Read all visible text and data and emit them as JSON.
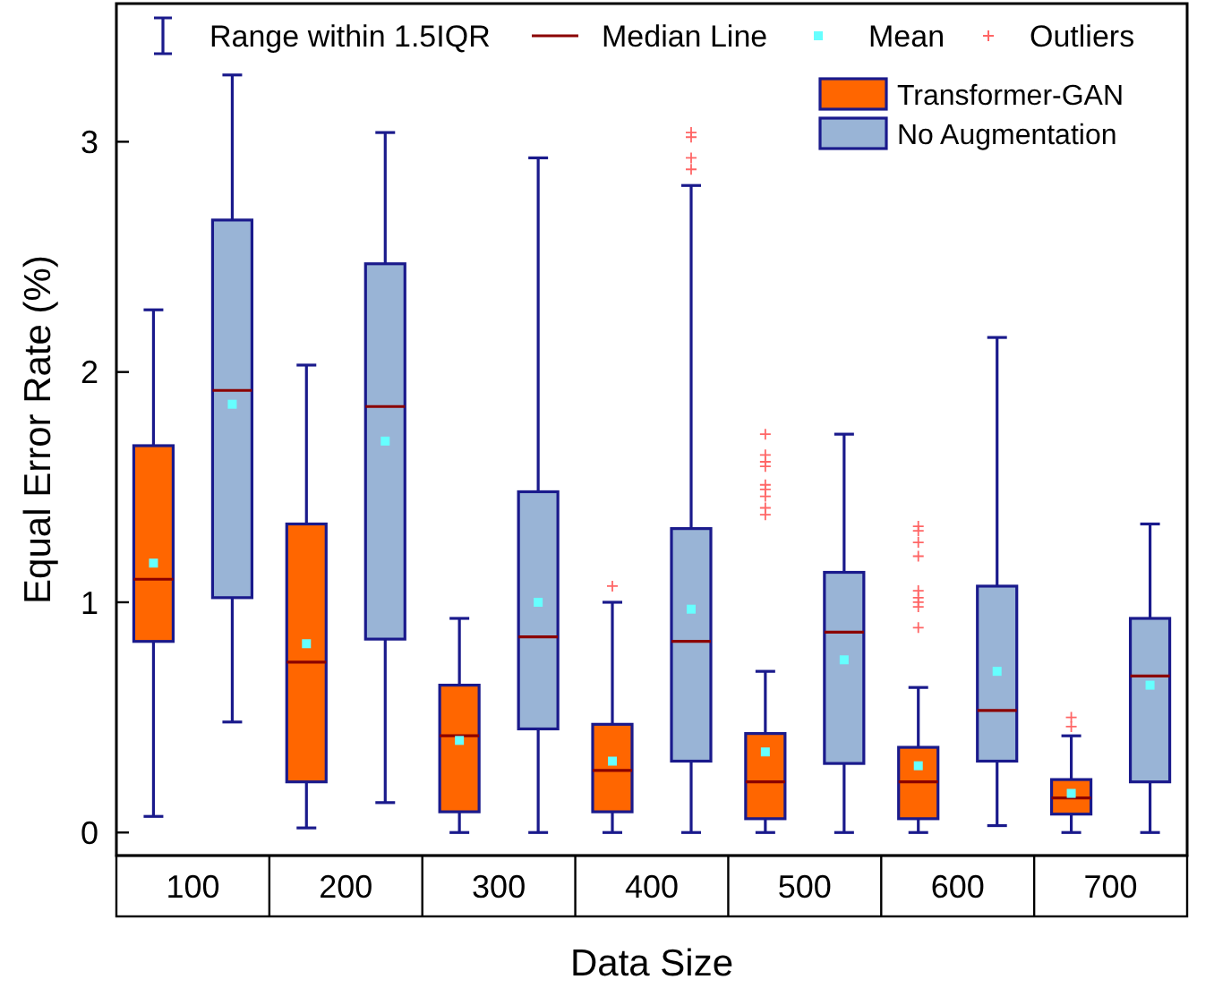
{
  "chart_data": {
    "type": "box",
    "xlabel": "Data Size",
    "ylabel": "Equal Error Rate (%)",
    "categories": [
      "100",
      "200",
      "300",
      "400",
      "500",
      "600",
      "700"
    ],
    "ylim": [
      -0.1,
      3.6
    ],
    "yticks": [
      0,
      1,
      2,
      3
    ],
    "grid": false,
    "legend": "top right",
    "annotations": [
      "Range within 1.5IQR",
      "Median Line",
      "Mean",
      "Outliers"
    ],
    "series": [
      {
        "name": "Transformer-GAN",
        "color": "#ff6600",
        "boxes": [
          {
            "low": 0.07,
            "q1": 0.83,
            "median": 1.1,
            "q3": 1.68,
            "high": 2.27,
            "mean": 1.17
          },
          {
            "low": 0.02,
            "q1": 0.22,
            "median": 0.74,
            "q3": 1.34,
            "high": 2.03,
            "mean": 0.82
          },
          {
            "low": 0,
            "q1": 0.09,
            "median": 0.42,
            "q3": 0.64,
            "high": 0.93,
            "mean": 0.4
          },
          {
            "low": 0,
            "q1": 0.09,
            "median": 0.27,
            "q3": 0.47,
            "high": 1.0,
            "mean": 0.31,
            "outliers": [
              1.07
            ]
          },
          {
            "low": 0,
            "q1": 0.06,
            "median": 0.22,
            "q3": 0.43,
            "high": 0.7,
            "mean": 0.35,
            "outliers": [
              1.73,
              1.64,
              1.61,
              1.59,
              1.51,
              1.49,
              1.46,
              1.41,
              1.38
            ]
          },
          {
            "low": 0,
            "q1": 0.06,
            "median": 0.22,
            "q3": 0.37,
            "high": 0.63,
            "mean": 0.29,
            "outliers": [
              1.33,
              1.31,
              1.26,
              1.2,
              1.05,
              1.02,
              1.0,
              0.98,
              0.89
            ]
          },
          {
            "low": 0,
            "q1": 0.08,
            "median": 0.15,
            "q3": 0.23,
            "high": 0.42,
            "mean": 0.17,
            "outliers": [
              0.5,
              0.46
            ]
          }
        ]
      },
      {
        "name": "No Augmentation",
        "color": "#99b4d6",
        "boxes": [
          {
            "low": 0.48,
            "q1": 1.02,
            "median": 1.92,
            "q3": 2.66,
            "high": 3.29,
            "mean": 1.86
          },
          {
            "low": 0.13,
            "q1": 0.84,
            "median": 1.85,
            "q3": 2.47,
            "high": 3.04,
            "mean": 1.7
          },
          {
            "low": 0,
            "q1": 0.45,
            "median": 0.85,
            "q3": 1.48,
            "high": 2.93,
            "mean": 1.0
          },
          {
            "low": 0,
            "q1": 0.31,
            "median": 0.83,
            "q3": 1.32,
            "high": 2.81,
            "mean": 0.97,
            "outliers": [
              3.04,
              3.02,
              2.93,
              2.88
            ]
          },
          {
            "low": 0,
            "q1": 0.3,
            "median": 0.87,
            "q3": 1.13,
            "high": 1.73,
            "mean": 0.75
          },
          {
            "low": 0.03,
            "q1": 0.31,
            "median": 0.53,
            "q3": 1.07,
            "high": 2.15,
            "mean": 0.7
          },
          {
            "low": 0,
            "q1": 0.22,
            "median": 0.68,
            "q3": 0.93,
            "high": 1.34,
            "mean": 0.64
          }
        ]
      }
    ]
  }
}
